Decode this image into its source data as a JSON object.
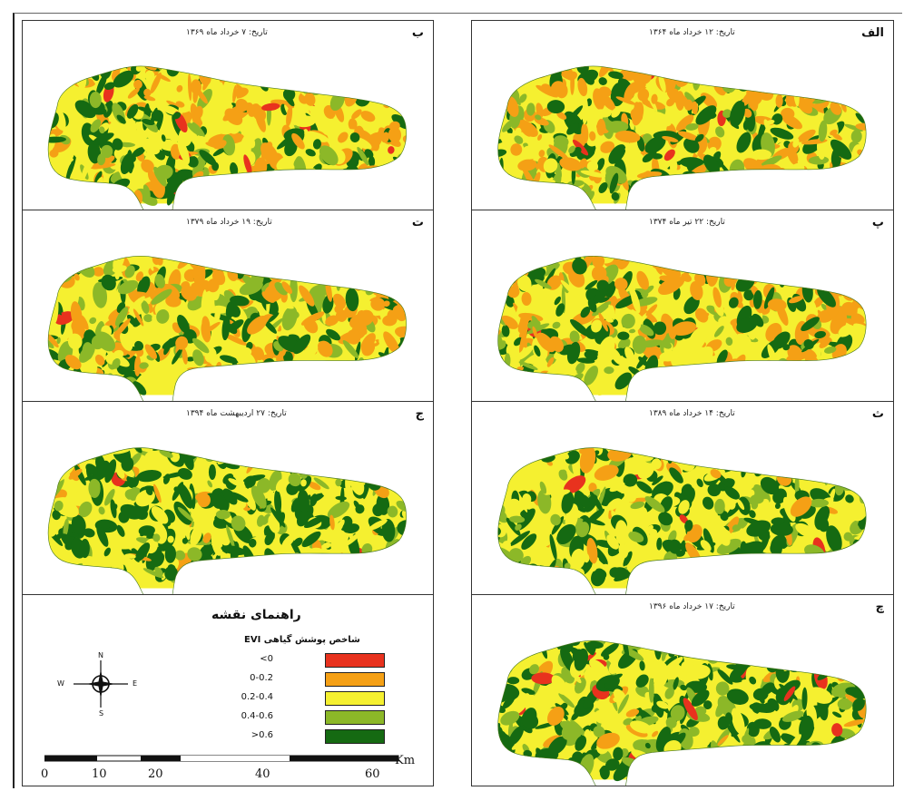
{
  "panels": [
    {
      "letter": "الف",
      "date": "تاریخ: ۱۲ خرداد ماه ۱۳۶۴",
      "variant": 0
    },
    {
      "letter": "ب",
      "date": "تاریخ: ۷ خرداد ماه ۱۳۶۹",
      "variant": 1
    },
    {
      "letter": "پ",
      "date": "تاریخ: ۲۲ تیر ماه ۱۳۷۴",
      "variant": 2
    },
    {
      "letter": "ت",
      "date": "تاریخ: ۱۹ خرداد ماه ۱۳۷۹",
      "variant": 3
    },
    {
      "letter": "ث",
      "date": "تاریخ: ۱۴ خرداد ماه ۱۳۸۹",
      "variant": 4
    },
    {
      "letter": "ج",
      "date": "تاریخ: ۲۷ اردیبهشت ماه ۱۳۹۴",
      "variant": 5
    },
    {
      "letter": "چ",
      "date": "تاریخ: ۱۷ خرداد ماه ۱۳۹۶",
      "variant": 6
    }
  ],
  "legend": {
    "title": "راهنمای نقشه",
    "subtitle": "شاخص پوشش گیاهی EVI",
    "classes": [
      {
        "label": "<0",
        "color": "#e8321e"
      },
      {
        "label": "0-0.2",
        "color": "#f5a015"
      },
      {
        "label": "0.2-0.4",
        "color": "#f5f030"
      },
      {
        "label": "0.4-0.6",
        "color": "#8cb828"
      },
      {
        "label": ">0.6",
        "color": "#156a12"
      }
    ],
    "compass": {
      "n": "N",
      "s": "S",
      "e": "E",
      "w": "W"
    },
    "scale": {
      "ticks": [
        "0",
        "10",
        "20",
        "40",
        "60"
      ],
      "unit": "Km"
    }
  }
}
